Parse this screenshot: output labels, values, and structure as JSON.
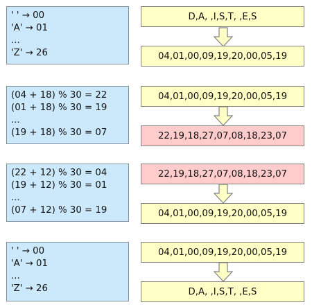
{
  "blocks": [
    {
      "left_lines": [
        "' ' → 00",
        "'A' → 01",
        "...",
        "'Z' → 26"
      ],
      "top_box": {
        "text": "D,A, ,I,S,T, ,E,S",
        "color": "#ffffc6"
      },
      "bottom_box": {
        "text": "04,01,00,09,19,20,00,05,19",
        "color": "#ffffc6"
      }
    },
    {
      "left_lines": [
        "(04 + 18) % 30 = 22",
        "(01 + 18) % 30 = 19",
        "...",
        "(19 + 18) % 30 = 07"
      ],
      "top_box": {
        "text": "04,01,00,09,19,20,00,05,19",
        "color": "#ffffc6"
      },
      "bottom_box": {
        "text": "22,19,18,27,07,08,18,23,07",
        "color": "#ffcccc"
      }
    },
    {
      "left_lines": [
        "(22 + 12) % 30 = 04",
        "(19 + 12) % 30 = 01",
        "...",
        "(07 + 12) % 30 = 19"
      ],
      "top_box": {
        "text": "22,19,18,27,07,08,18,23,07",
        "color": "#ffcccc"
      },
      "bottom_box": {
        "text": "04,01,00,09,19,20,00,05,19",
        "color": "#ffffc6"
      }
    },
    {
      "left_lines": [
        "' ' → 00",
        "'A' → 01",
        "...",
        "'Z' → 26"
      ],
      "top_box": {
        "text": "04,01,00,09,19,20,00,05,19",
        "color": "#ffffc6"
      },
      "bottom_box": {
        "text": "D,A, ,I,S,T, ,E,S",
        "color": "#ffffc6"
      }
    }
  ],
  "arrow_icon": "down-arrow-icon",
  "colors": {
    "left_box": "#cce9fb",
    "arrow_fill": "#ffffc6",
    "border": "#808080"
  }
}
